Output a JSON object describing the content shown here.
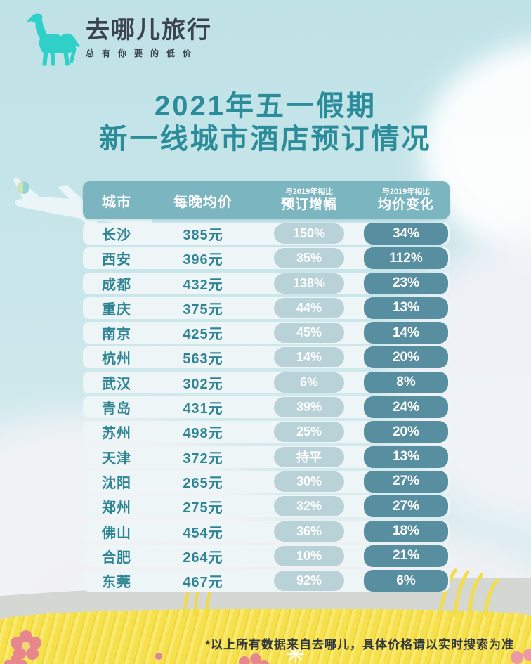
{
  "logo": {
    "brand": "去哪儿旅行",
    "tagline": "总有你要的低价"
  },
  "title": {
    "line1": "2021年五一假期",
    "line2": "新一线城市酒店预订情况"
  },
  "table": {
    "headers": {
      "city": "城市",
      "price": "每晚均价",
      "compare_note": "与2019年相比",
      "booking_growth": "预订增幅",
      "price_change": "均价变化"
    },
    "rows": [
      {
        "city": "长沙",
        "price": "385元",
        "booking_growth": "150%",
        "price_change": "34%"
      },
      {
        "city": "西安",
        "price": "396元",
        "booking_growth": "35%",
        "price_change": "112%"
      },
      {
        "city": "成都",
        "price": "432元",
        "booking_growth": "138%",
        "price_change": "23%"
      },
      {
        "city": "重庆",
        "price": "375元",
        "booking_growth": "44%",
        "price_change": "13%"
      },
      {
        "city": "南京",
        "price": "425元",
        "booking_growth": "45%",
        "price_change": "14%"
      },
      {
        "city": "杭州",
        "price": "563元",
        "booking_growth": "14%",
        "price_change": "20%"
      },
      {
        "city": "武汉",
        "price": "302元",
        "booking_growth": "6%",
        "price_change": "8%"
      },
      {
        "city": "青岛",
        "price": "431元",
        "booking_growth": "39%",
        "price_change": "24%"
      },
      {
        "city": "苏州",
        "price": "498元",
        "booking_growth": "25%",
        "price_change": "20%"
      },
      {
        "city": "天津",
        "price": "372元",
        "booking_growth": "持平",
        "price_change": "13%"
      },
      {
        "city": "沈阳",
        "price": "265元",
        "booking_growth": "30%",
        "price_change": "27%"
      },
      {
        "city": "郑州",
        "price": "275元",
        "booking_growth": "32%",
        "price_change": "27%"
      },
      {
        "city": "佛山",
        "price": "454元",
        "booking_growth": "36%",
        "price_change": "18%"
      },
      {
        "city": "合肥",
        "price": "264元",
        "booking_growth": "10%",
        "price_change": "21%"
      },
      {
        "city": "东莞",
        "price": "467元",
        "booking_growth": "92%",
        "price_change": "6%"
      }
    ]
  },
  "footer": {
    "note": "*以上所有数据来自去哪儿，具体价格请以实时搜索为准"
  },
  "colors": {
    "sky": "#c9e6ea",
    "title_teal": "#2b8d99",
    "header_bar": "#7bb5bf",
    "row_band": "#eef5f6",
    "cell_text": "#2f8494",
    "pill_light": "#b8d2d8",
    "pill_dark": "#578fa0",
    "grass": "#f6e04d",
    "hill": "#d5d7d3",
    "logo_camel": "#2fd0c8",
    "logo_text": "#3b434c",
    "footer_text": "#31373e",
    "flower": "#e8868d"
  },
  "chart_data": {
    "type": "table",
    "title": "2021年五一假期 新一线城市酒店预订情况",
    "columns": [
      "城市",
      "每晚均价",
      "与2019年相比预订增幅",
      "与2019年相比均价变化"
    ],
    "rows": [
      [
        "长沙",
        "385元",
        "150%",
        "34%"
      ],
      [
        "西安",
        "396元",
        "35%",
        "112%"
      ],
      [
        "成都",
        "432元",
        "138%",
        "23%"
      ],
      [
        "重庆",
        "375元",
        "44%",
        "13%"
      ],
      [
        "南京",
        "425元",
        "45%",
        "14%"
      ],
      [
        "杭州",
        "563元",
        "14%",
        "20%"
      ],
      [
        "武汉",
        "302元",
        "6%",
        "8%"
      ],
      [
        "青岛",
        "431元",
        "39%",
        "24%"
      ],
      [
        "苏州",
        "498元",
        "25%",
        "20%"
      ],
      [
        "天津",
        "372元",
        "持平",
        "13%"
      ],
      [
        "沈阳",
        "265元",
        "30%",
        "27%"
      ],
      [
        "郑州",
        "275元",
        "32%",
        "27%"
      ],
      [
        "佛山",
        "454元",
        "36%",
        "18%"
      ],
      [
        "合肥",
        "264元",
        "10%",
        "21%"
      ],
      [
        "东莞",
        "467元",
        "92%",
        "6%"
      ]
    ],
    "source_note": "*以上所有数据来自去哪儿，具体价格请以实时搜索为准"
  }
}
